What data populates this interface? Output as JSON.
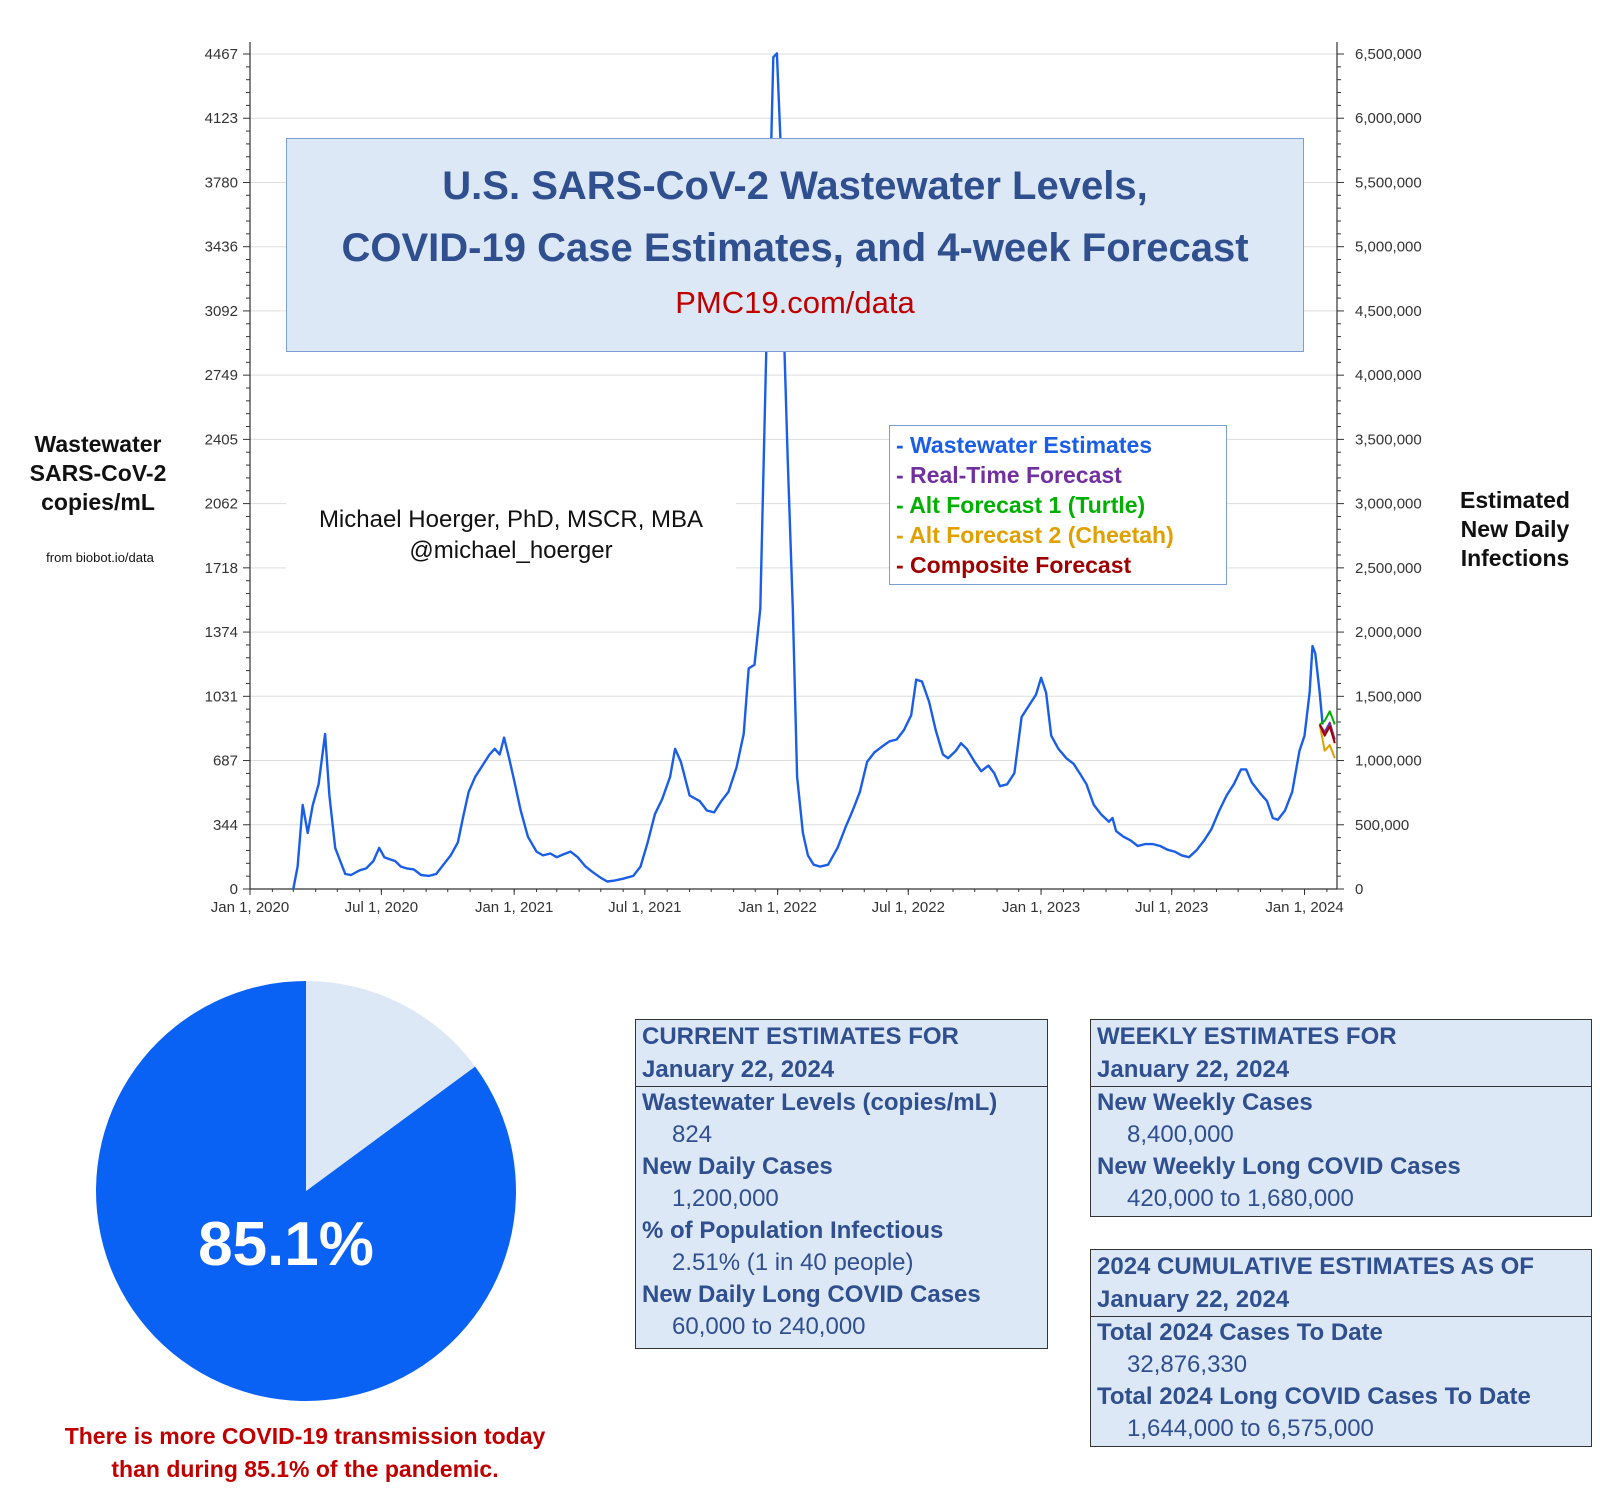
{
  "chart_data": [
    {
      "type": "line",
      "title": "U.S. SARS-CoV-2 Wastewater Levels, COVID-19 Case Estimates, and 4-week Forecast",
      "title_lines": [
        "U.S. SARS-CoV-2 Wastewater Levels,",
        "COVID-19 Case Estimates, and 4-week Forecast"
      ],
      "subtitle": "PMC19.com/data",
      "ylabel": "Wastewater SARS-CoV-2 copies/mL",
      "ylabel_lines": [
        "Wastewater",
        "SARS-CoV-2",
        "copies/mL"
      ],
      "y2label": "Estimated New Daily Infections",
      "y2label_lines": [
        "Estimated",
        "New Daily",
        "Infections"
      ],
      "source_note": "from biobot.io/data",
      "author": [
        "Michael Hoerger, PhD, MSCR, MBA",
        "@michael_hoerger"
      ],
      "ylim": [
        0,
        4467
      ],
      "y2lim": [
        0,
        6500000
      ],
      "yticks": [
        "0",
        "344",
        "687",
        "1031",
        "1374",
        "1718",
        "2062",
        "2405",
        "2749",
        "3092",
        "3436",
        "3780",
        "4123",
        "4467"
      ],
      "y2ticks": [
        "0",
        "500,000",
        "1,000,000",
        "1,500,000",
        "2,000,000",
        "2,500,000",
        "3,000,000",
        "3,500,000",
        "4,000,000",
        "4,500,000",
        "5,000,000",
        "5,500,000",
        "6,000,000",
        "6,500,000"
      ],
      "xticks": [
        "Jan 1, 2020",
        "Jul 1, 2020",
        "Jan 1, 2021",
        "Jul 1, 2021",
        "Jan 1, 2022",
        "Jul 1, 2022",
        "Jan 1, 2023",
        "Jul 1, 2023",
        "Jan 1, 2024"
      ],
      "xlim": [
        "2020-01-01",
        "2024-02-15"
      ],
      "grid": true,
      "legend_position": "upper-right",
      "series": [
        {
          "name": "Wastewater Estimates",
          "color": "#1a5ee8",
          "points": [
            [
              "2020-03-01",
              0
            ],
            [
              "2020-03-07",
              120
            ],
            [
              "2020-03-14",
              450
            ],
            [
              "2020-03-21",
              300
            ],
            [
              "2020-03-28",
              450
            ],
            [
              "2020-04-05",
              560
            ],
            [
              "2020-04-14",
              830
            ],
            [
              "2020-04-20",
              500
            ],
            [
              "2020-04-28",
              220
            ],
            [
              "2020-05-05",
              150
            ],
            [
              "2020-05-12",
              80
            ],
            [
              "2020-05-20",
              75
            ],
            [
              "2020-06-01",
              100
            ],
            [
              "2020-06-10",
              110
            ],
            [
              "2020-06-20",
              150
            ],
            [
              "2020-06-28",
              220
            ],
            [
              "2020-07-05",
              170
            ],
            [
              "2020-07-12",
              160
            ],
            [
              "2020-07-20",
              150
            ],
            [
              "2020-07-28",
              120
            ],
            [
              "2020-08-05",
              110
            ],
            [
              "2020-08-15",
              105
            ],
            [
              "2020-08-25",
              75
            ],
            [
              "2020-09-05",
              70
            ],
            [
              "2020-09-15",
              80
            ],
            [
              "2020-09-25",
              130
            ],
            [
              "2020-10-05",
              180
            ],
            [
              "2020-10-15",
              250
            ],
            [
              "2020-10-22",
              380
            ],
            [
              "2020-10-30",
              520
            ],
            [
              "2020-11-08",
              600
            ],
            [
              "2020-11-18",
              660
            ],
            [
              "2020-11-28",
              720
            ],
            [
              "2020-12-05",
              750
            ],
            [
              "2020-12-12",
              720
            ],
            [
              "2020-12-18",
              810
            ],
            [
              "2020-12-25",
              700
            ],
            [
              "2021-01-01",
              580
            ],
            [
              "2021-01-10",
              420
            ],
            [
              "2021-01-20",
              280
            ],
            [
              "2021-02-01",
              200
            ],
            [
              "2021-02-10",
              180
            ],
            [
              "2021-02-20",
              190
            ],
            [
              "2021-03-01",
              170
            ],
            [
              "2021-03-10",
              185
            ],
            [
              "2021-03-20",
              200
            ],
            [
              "2021-03-30",
              170
            ],
            [
              "2021-04-10",
              120
            ],
            [
              "2021-04-20",
              90
            ],
            [
              "2021-05-01",
              60
            ],
            [
              "2021-05-10",
              40
            ],
            [
              "2021-05-20",
              45
            ],
            [
              "2021-06-01",
              55
            ],
            [
              "2021-06-15",
              70
            ],
            [
              "2021-06-25",
              120
            ],
            [
              "2021-07-05",
              250
            ],
            [
              "2021-07-15",
              400
            ],
            [
              "2021-07-25",
              480
            ],
            [
              "2021-08-05",
              600
            ],
            [
              "2021-08-12",
              750
            ],
            [
              "2021-08-20",
              680
            ],
            [
              "2021-09-01",
              500
            ],
            [
              "2021-09-15",
              470
            ],
            [
              "2021-09-25",
              420
            ],
            [
              "2021-10-05",
              410
            ],
            [
              "2021-10-15",
              470
            ],
            [
              "2021-10-25",
              520
            ],
            [
              "2021-11-05",
              650
            ],
            [
              "2021-11-15",
              830
            ],
            [
              "2021-11-22",
              1180
            ],
            [
              "2021-11-30",
              1200
            ],
            [
              "2021-12-08",
              1500
            ],
            [
              "2021-12-14",
              2500
            ],
            [
              "2021-12-20",
              3500
            ],
            [
              "2021-12-26",
              4450
            ],
            [
              "2021-12-31",
              4470
            ],
            [
              "2022-01-05",
              4000
            ],
            [
              "2022-01-08",
              3200
            ],
            [
              "2022-01-15",
              2300
            ],
            [
              "2022-01-22",
              1500
            ],
            [
              "2022-01-28",
              600
            ],
            [
              "2022-02-05",
              300
            ],
            [
              "2022-02-12",
              180
            ],
            [
              "2022-02-20",
              130
            ],
            [
              "2022-03-01",
              120
            ],
            [
              "2022-03-12",
              130
            ],
            [
              "2022-03-25",
              220
            ],
            [
              "2022-04-05",
              330
            ],
            [
              "2022-04-15",
              420
            ],
            [
              "2022-04-25",
              520
            ],
            [
              "2022-05-05",
              680
            ],
            [
              "2022-05-15",
              730
            ],
            [
              "2022-05-25",
              760
            ],
            [
              "2022-06-05",
              790
            ],
            [
              "2022-06-15",
              800
            ],
            [
              "2022-06-25",
              850
            ],
            [
              "2022-07-05",
              930
            ],
            [
              "2022-07-12",
              1120
            ],
            [
              "2022-07-20",
              1110
            ],
            [
              "2022-07-30",
              1000
            ],
            [
              "2022-08-08",
              850
            ],
            [
              "2022-08-18",
              720
            ],
            [
              "2022-08-25",
              700
            ],
            [
              "2022-09-05",
              740
            ],
            [
              "2022-09-12",
              780
            ],
            [
              "2022-09-20",
              750
            ],
            [
              "2022-10-01",
              680
            ],
            [
              "2022-10-10",
              630
            ],
            [
              "2022-10-20",
              660
            ],
            [
              "2022-10-28",
              620
            ],
            [
              "2022-11-05",
              550
            ],
            [
              "2022-11-15",
              560
            ],
            [
              "2022-11-25",
              620
            ],
            [
              "2022-12-05",
              920
            ],
            [
              "2022-12-15",
              980
            ],
            [
              "2022-12-25",
              1040
            ],
            [
              "2023-01-01",
              1130
            ],
            [
              "2023-01-08",
              1050
            ],
            [
              "2023-01-15",
              820
            ],
            [
              "2023-01-25",
              750
            ],
            [
              "2023-02-05",
              700
            ],
            [
              "2023-02-15",
              670
            ],
            [
              "2023-02-25",
              610
            ],
            [
              "2023-03-05",
              560
            ],
            [
              "2023-03-15",
              450
            ],
            [
              "2023-03-25",
              400
            ],
            [
              "2023-04-05",
              360
            ],
            [
              "2023-04-10",
              380
            ],
            [
              "2023-04-15",
              310
            ],
            [
              "2023-04-25",
              280
            ],
            [
              "2023-05-05",
              260
            ],
            [
              "2023-05-15",
              230
            ],
            [
              "2023-05-25",
              240
            ],
            [
              "2023-06-05",
              240
            ],
            [
              "2023-06-15",
              230
            ],
            [
              "2023-06-25",
              210
            ],
            [
              "2023-07-05",
              200
            ],
            [
              "2023-07-15",
              180
            ],
            [
              "2023-07-25",
              170
            ],
            [
              "2023-08-05",
              210
            ],
            [
              "2023-08-15",
              260
            ],
            [
              "2023-08-25",
              320
            ],
            [
              "2023-09-05",
              420
            ],
            [
              "2023-09-15",
              500
            ],
            [
              "2023-09-25",
              560
            ],
            [
              "2023-10-05",
              640
            ],
            [
              "2023-10-12",
              640
            ],
            [
              "2023-10-20",
              570
            ],
            [
              "2023-11-01",
              510
            ],
            [
              "2023-11-10",
              470
            ],
            [
              "2023-11-18",
              380
            ],
            [
              "2023-11-25",
              370
            ],
            [
              "2023-12-05",
              420
            ],
            [
              "2023-12-15",
              520
            ],
            [
              "2023-12-25",
              740
            ],
            [
              "2024-01-01",
              820
            ],
            [
              "2024-01-08",
              1050
            ],
            [
              "2024-01-12",
              1300
            ],
            [
              "2024-01-16",
              1260
            ],
            [
              "2024-01-22",
              1050
            ],
            [
              "2024-01-26",
              880
            ]
          ]
        },
        {
          "name": "Real-Time Forecast",
          "color": "#7030a0",
          "points": [
            [
              "2024-01-22",
              880
            ],
            [
              "2024-01-29",
              840
            ],
            [
              "2024-02-05",
              890
            ],
            [
              "2024-02-12",
              800
            ]
          ]
        },
        {
          "name": "Alt Forecast 1 (Turtle)",
          "color": "#00b000",
          "points": [
            [
              "2024-01-22",
              880
            ],
            [
              "2024-01-29",
              900
            ],
            [
              "2024-02-05",
              950
            ],
            [
              "2024-02-12",
              880
            ]
          ]
        },
        {
          "name": "Alt Forecast 2 (Cheetah)",
          "color": "#e0a000",
          "points": [
            [
              "2024-01-22",
              880
            ],
            [
              "2024-01-29",
              740
            ],
            [
              "2024-02-05",
              770
            ],
            [
              "2024-02-12",
              700
            ]
          ]
        },
        {
          "name": "Composite Forecast",
          "color": "#a00000",
          "points": [
            [
              "2024-01-22",
              880
            ],
            [
              "2024-01-29",
              820
            ],
            [
              "2024-02-05",
              870
            ],
            [
              "2024-02-12",
              780
            ]
          ]
        }
      ]
    },
    {
      "type": "pie",
      "values": [
        85.1,
        14.9
      ],
      "colors": [
        "#0a62f5",
        "#dce8f5"
      ],
      "label": "85.1%"
    }
  ],
  "legend": [
    {
      "text": "- Wastewater Estimates",
      "color": "#1a5ee8"
    },
    {
      "text": "- Real-Time Forecast",
      "color": "#7030a0"
    },
    {
      "text": "- Alt Forecast 1 (Turtle)",
      "color": "#00b000"
    },
    {
      "text": "- Alt Forecast 2 (Cheetah)",
      "color": "#e0a000"
    },
    {
      "text": "- Composite Forecast",
      "color": "#a00000"
    }
  ],
  "pie_caption": [
    "There is more COVID-19 transmission today",
    "than during 85.1% of the pandemic."
  ],
  "current_estimates": {
    "header": [
      "CURRENT ESTIMATES FOR",
      "January 22, 2024"
    ],
    "items": [
      {
        "label": "Wastewater Levels (copies/mL)",
        "value": "824"
      },
      {
        "label": "New Daily Cases",
        "value": "1,200,000"
      },
      {
        "label": "% of Population Infectious",
        "value": "2.51% (1 in 40 people)"
      },
      {
        "label": "New Daily Long COVID Cases",
        "value": "60,000 to 240,000"
      }
    ]
  },
  "weekly_estimates": {
    "header": [
      "WEEKLY ESTIMATES FOR",
      "January 22, 2024"
    ],
    "items": [
      {
        "label": "New Weekly Cases",
        "value": "8,400,000"
      },
      {
        "label": "New Weekly Long COVID Cases",
        "value": "420,000 to 1,680,000"
      }
    ]
  },
  "cumulative_estimates": {
    "header": [
      "2024 CUMULATIVE ESTIMATES AS OF",
      "January 22, 2024"
    ],
    "items": [
      {
        "label": "Total 2024 Cases To Date",
        "value": "32,876,330"
      },
      {
        "label": "Total 2024 Long COVID Cases To Date",
        "value": "1,644,000 to 6,575,000"
      }
    ]
  }
}
